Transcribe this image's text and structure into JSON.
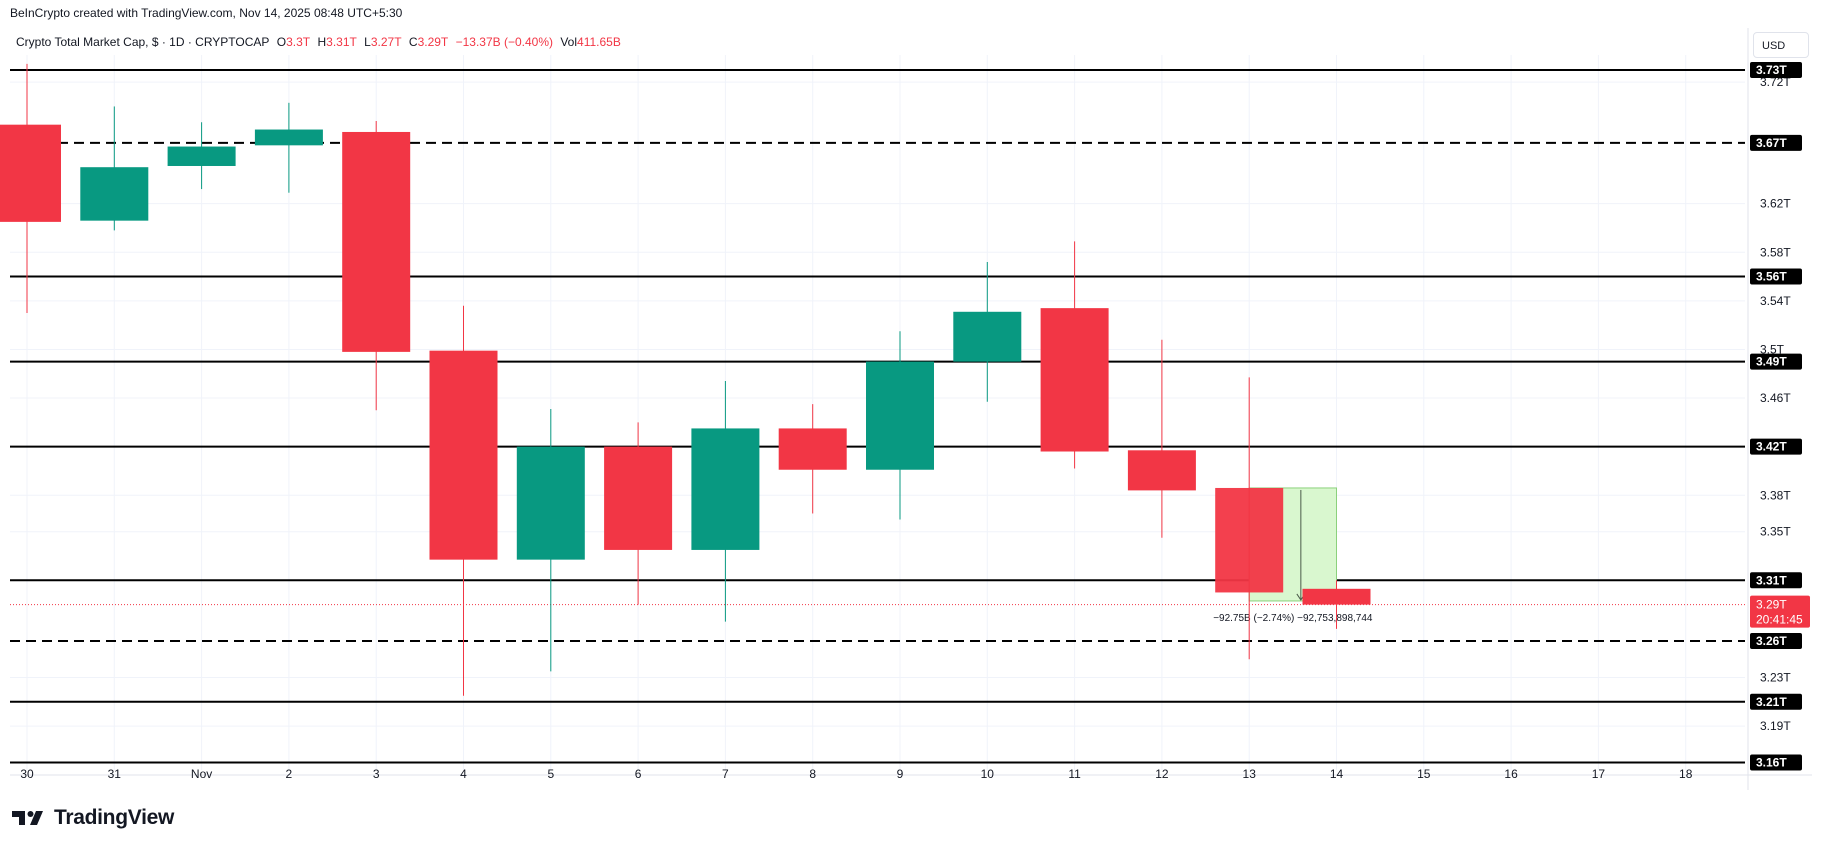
{
  "header": {
    "credit": "BeInCrypto created with TradingView.com, Nov 14, 2025 08:48 UTC+5:30"
  },
  "legend": {
    "symbol": "Crypto Total Market Cap, $ · 1D · CRYPTOCAP",
    "open_label": "O",
    "open_value": "3.3T",
    "high_label": "H",
    "high_value": "3.31T",
    "low_label": "L",
    "low_value": "3.27T",
    "close_label": "C",
    "close_value": "3.29T",
    "change": "−13.37B (−0.40%)",
    "volume_label": "Vol",
    "volume_value": "411.65B"
  },
  "currency_button": "USD",
  "brand": {
    "name": "TradingView"
  },
  "colors": {
    "up": "#089981",
    "down": "#f23645",
    "level_line": "#000000",
    "measure_fill": "#d9f7cf",
    "current_price": "#f23645",
    "grid": "#f0f3fa"
  },
  "chart_data": {
    "type": "candlestick",
    "x_tick_labels": [
      "30",
      "31",
      "Nov",
      "2",
      "3",
      "4",
      "5",
      "6",
      "7",
      "8",
      "9",
      "10",
      "11",
      "12",
      "13",
      "14",
      "15",
      "16",
      "17",
      "18"
    ],
    "y_tick_labels": [
      "3.72T",
      "3.62T",
      "3.58T",
      "3.54T",
      "3.5T",
      "3.46T",
      "3.38T",
      "3.35T",
      "3.23T",
      "3.19T"
    ],
    "y_tick_values": [
      3.72,
      3.62,
      3.58,
      3.54,
      3.5,
      3.46,
      3.38,
      3.35,
      3.23,
      3.19
    ],
    "ylim": [
      3.14,
      3.75
    ],
    "candles": [
      {
        "date": "30",
        "open": 3.685,
        "high": 3.735,
        "low": 3.53,
        "close": 3.605
      },
      {
        "date": "31",
        "open": 3.606,
        "high": 3.7,
        "low": 3.598,
        "close": 3.65
      },
      {
        "date": "Nov",
        "open": 3.651,
        "high": 3.687,
        "low": 3.632,
        "close": 3.667
      },
      {
        "date": "2",
        "open": 3.668,
        "high": 3.703,
        "low": 3.629,
        "close": 3.681
      },
      {
        "date": "3",
        "open": 3.679,
        "high": 3.688,
        "low": 3.45,
        "close": 3.498
      },
      {
        "date": "4",
        "open": 3.499,
        "high": 3.536,
        "low": 3.215,
        "close": 3.327
      },
      {
        "date": "5",
        "open": 3.327,
        "high": 3.451,
        "low": 3.235,
        "close": 3.42
      },
      {
        "date": "6",
        "open": 3.42,
        "high": 3.44,
        "low": 3.29,
        "close": 3.335
      },
      {
        "date": "7",
        "open": 3.335,
        "high": 3.474,
        "low": 3.276,
        "close": 3.435
      },
      {
        "date": "8",
        "open": 3.435,
        "high": 3.455,
        "low": 3.365,
        "close": 3.401
      },
      {
        "date": "9",
        "open": 3.401,
        "high": 3.515,
        "low": 3.36,
        "close": 3.49
      },
      {
        "date": "10",
        "open": 3.49,
        "high": 3.572,
        "low": 3.457,
        "close": 3.531
      },
      {
        "date": "11",
        "open": 3.534,
        "high": 3.589,
        "low": 3.402,
        "close": 3.416
      },
      {
        "date": "12",
        "open": 3.417,
        "high": 3.508,
        "low": 3.345,
        "close": 3.384
      },
      {
        "date": "13",
        "open": 3.386,
        "high": 3.477,
        "low": 3.245,
        "close": 3.3
      },
      {
        "date": "14",
        "open": 3.303,
        "high": 3.31,
        "low": 3.27,
        "close": 3.29
      }
    ],
    "levels": [
      {
        "value": 3.73,
        "label": "3.73T",
        "style": "solid"
      },
      {
        "value": 3.67,
        "label": "3.67T",
        "style": "dashed"
      },
      {
        "value": 3.56,
        "label": "3.56T",
        "style": "solid"
      },
      {
        "value": 3.49,
        "label": "3.49T",
        "style": "solid"
      },
      {
        "value": 3.42,
        "label": "3.42T",
        "style": "solid"
      },
      {
        "value": 3.31,
        "label": "3.31T",
        "style": "solid"
      },
      {
        "value": 3.26,
        "label": "3.26T",
        "style": "dashed"
      },
      {
        "value": 3.21,
        "label": "3.21T",
        "style": "solid"
      },
      {
        "value": 3.16,
        "label": "3.16T",
        "style": "solid"
      }
    ],
    "current_price": {
      "value": 3.29,
      "label": "3.29T",
      "countdown": "20:41:45"
    },
    "measure": {
      "from_date": "13",
      "to_date": "14",
      "top": 3.386,
      "bottom": 3.293,
      "label": "−92.75B (−2.74%) −92,753,898,744"
    }
  }
}
